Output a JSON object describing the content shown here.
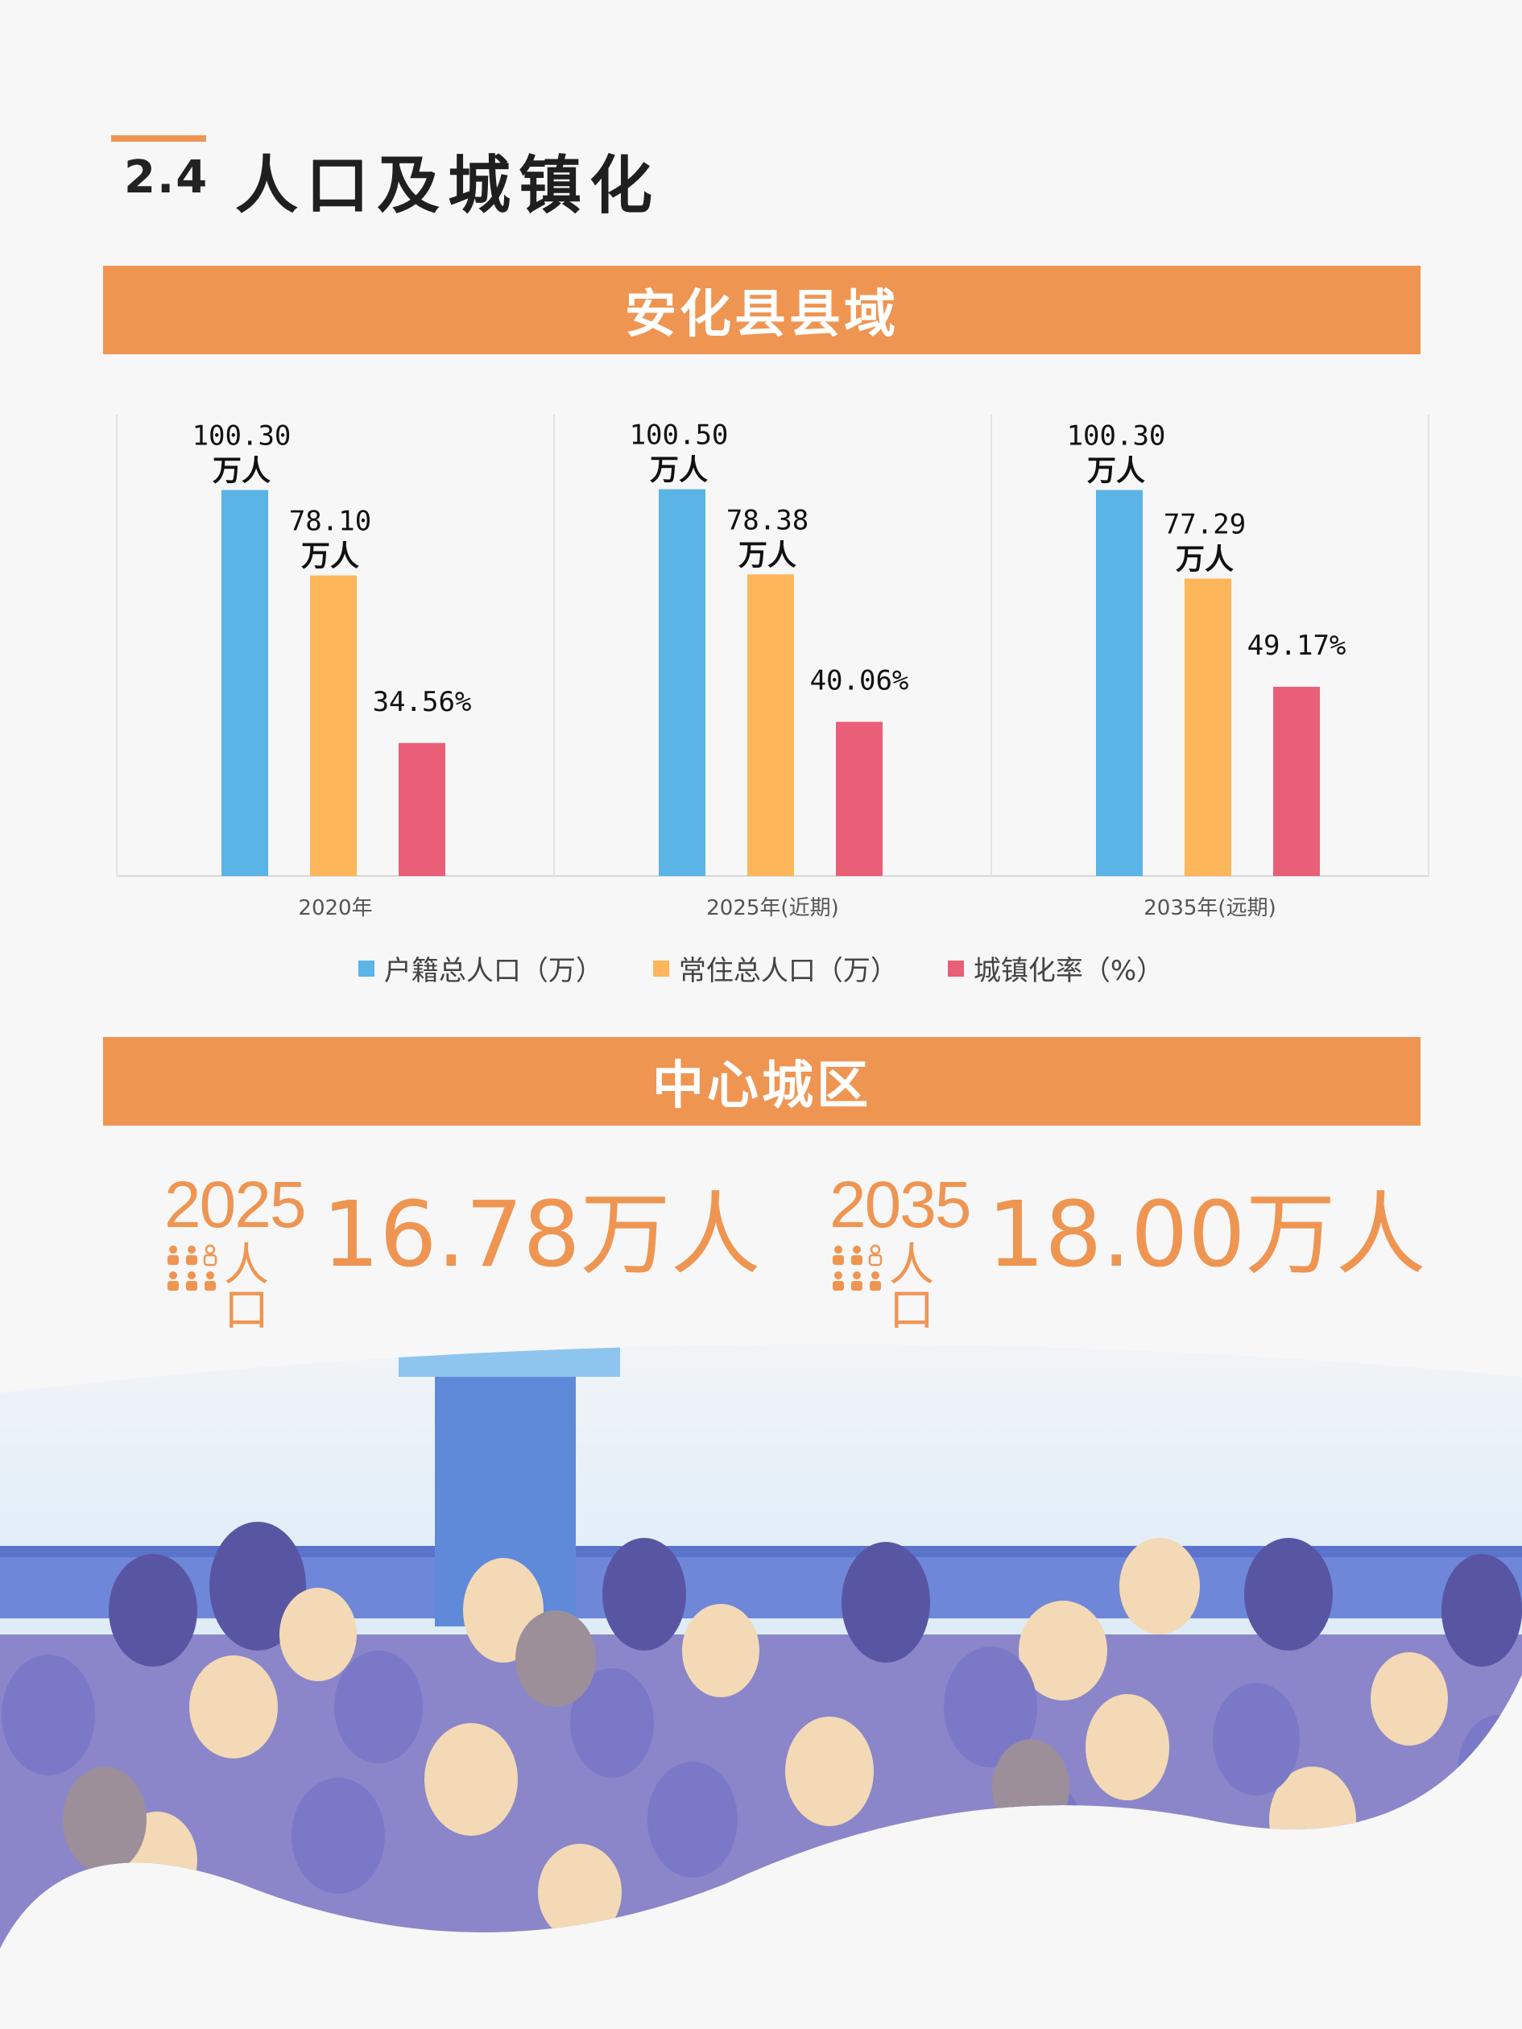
{
  "header": {
    "section_number": "2.4",
    "title": "人口及城镇化"
  },
  "county": {
    "banner": "安化县县域"
  },
  "center": {
    "banner": "中心城区"
  },
  "colors": {
    "accent": "#ef9552",
    "household": "#5ab4e5",
    "resident": "#fdb65a",
    "urbanization": "#ea5f78"
  },
  "chart_data": {
    "type": "bar",
    "categories": [
      "2020年",
      "2025年(近期)",
      "2035年(远期)"
    ],
    "series": [
      {
        "name": "户籍总人口（万）",
        "values": [
          100.3,
          100.5,
          100.3
        ],
        "labels": [
          "100.30万人",
          "100.50万人",
          "100.30万人"
        ]
      },
      {
        "name": "常住总人口（万）",
        "values": [
          78.1,
          78.38,
          77.29
        ],
        "labels": [
          "78.10万人",
          "78.38万人",
          "77.29万人"
        ]
      },
      {
        "name": "城镇化率（%）",
        "values": [
          34.56,
          40.06,
          49.17
        ],
        "labels": [
          "34.56%",
          "40.06%",
          "49.17%"
        ]
      }
    ],
    "legend_position": "bottom",
    "grid": false
  },
  "stats": [
    {
      "year": "2025",
      "label": "人口",
      "value": "16.78万人"
    },
    {
      "year": "2035",
      "label": "人口",
      "value": "18.00万人"
    }
  ],
  "illustration": {
    "description_icon": "crowd-audience-illustration"
  }
}
